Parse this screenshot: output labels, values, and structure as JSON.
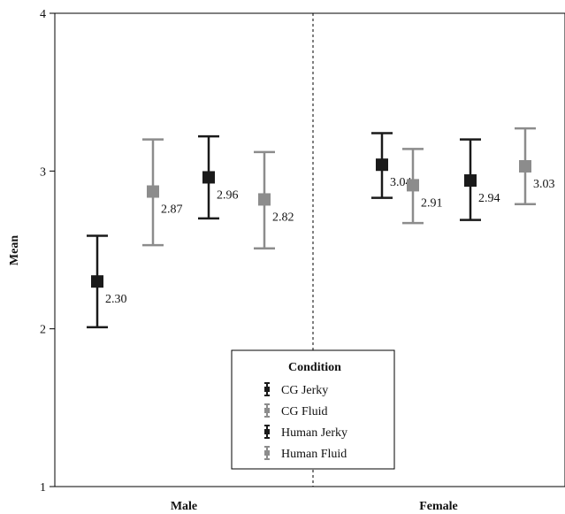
{
  "chart_data": {
    "type": "error_bar",
    "ylabel": "Mean",
    "xlabel": "",
    "ylim": [
      1,
      4
    ],
    "yticks": [
      "1",
      "2",
      "3",
      "4"
    ],
    "categories": [
      "Male",
      "Female"
    ],
    "legend": {
      "title": "Condition",
      "placement": "bottom-center"
    },
    "series": [
      {
        "name": "CG Jerky",
        "color": "#1a1a1a",
        "values": [
          2.3,
          3.04
        ],
        "labels": [
          "2.30",
          "3.04"
        ],
        "lower": [
          2.01,
          2.83
        ],
        "upper": [
          2.59,
          3.24
        ]
      },
      {
        "name": "CG Fluid",
        "color": "#8c8c8c",
        "values": [
          2.87,
          2.91
        ],
        "labels": [
          "2.87",
          "2.91"
        ],
        "lower": [
          2.53,
          2.67
        ],
        "upper": [
          3.2,
          3.14
        ]
      },
      {
        "name": "Human Jerky",
        "color": "#1a1a1a",
        "values": [
          2.96,
          2.94
        ],
        "labels": [
          "2.96",
          "2.94"
        ],
        "lower": [
          2.7,
          2.69
        ],
        "upper": [
          3.22,
          3.2
        ]
      },
      {
        "name": "Human Fluid",
        "color": "#8c8c8c",
        "values": [
          2.82,
          3.03
        ],
        "labels": [
          "2.82",
          "3.03"
        ],
        "lower": [
          2.51,
          2.79
        ],
        "upper": [
          3.12,
          3.27
        ]
      }
    ]
  }
}
